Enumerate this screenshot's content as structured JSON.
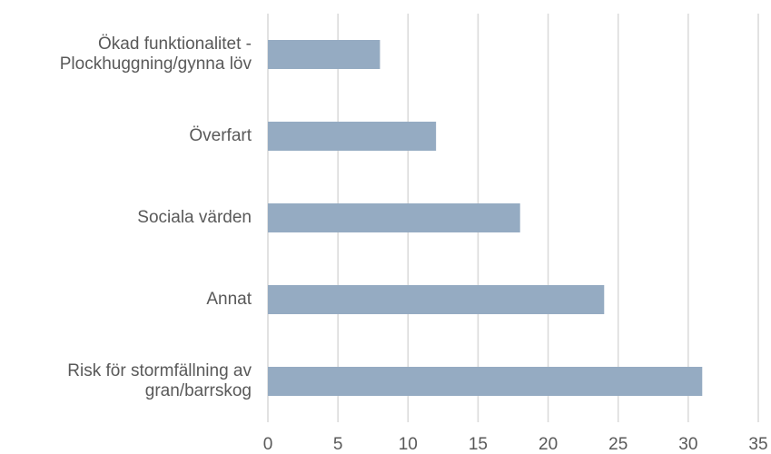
{
  "chart_data": {
    "type": "barh",
    "categories": [
      "Ökad funktionalitet -\nPlockhuggning/gynna löv",
      "Överfart",
      "Sociala värden",
      "Annat",
      "Risk för stormfällning av\ngran/barrskog"
    ],
    "values": [
      8,
      12,
      18,
      24,
      31
    ],
    "color": "#95abc2",
    "xlim": [
      0,
      35
    ],
    "xticks": [
      0,
      5,
      10,
      15,
      20,
      25,
      30,
      35
    ],
    "grid": true
  }
}
